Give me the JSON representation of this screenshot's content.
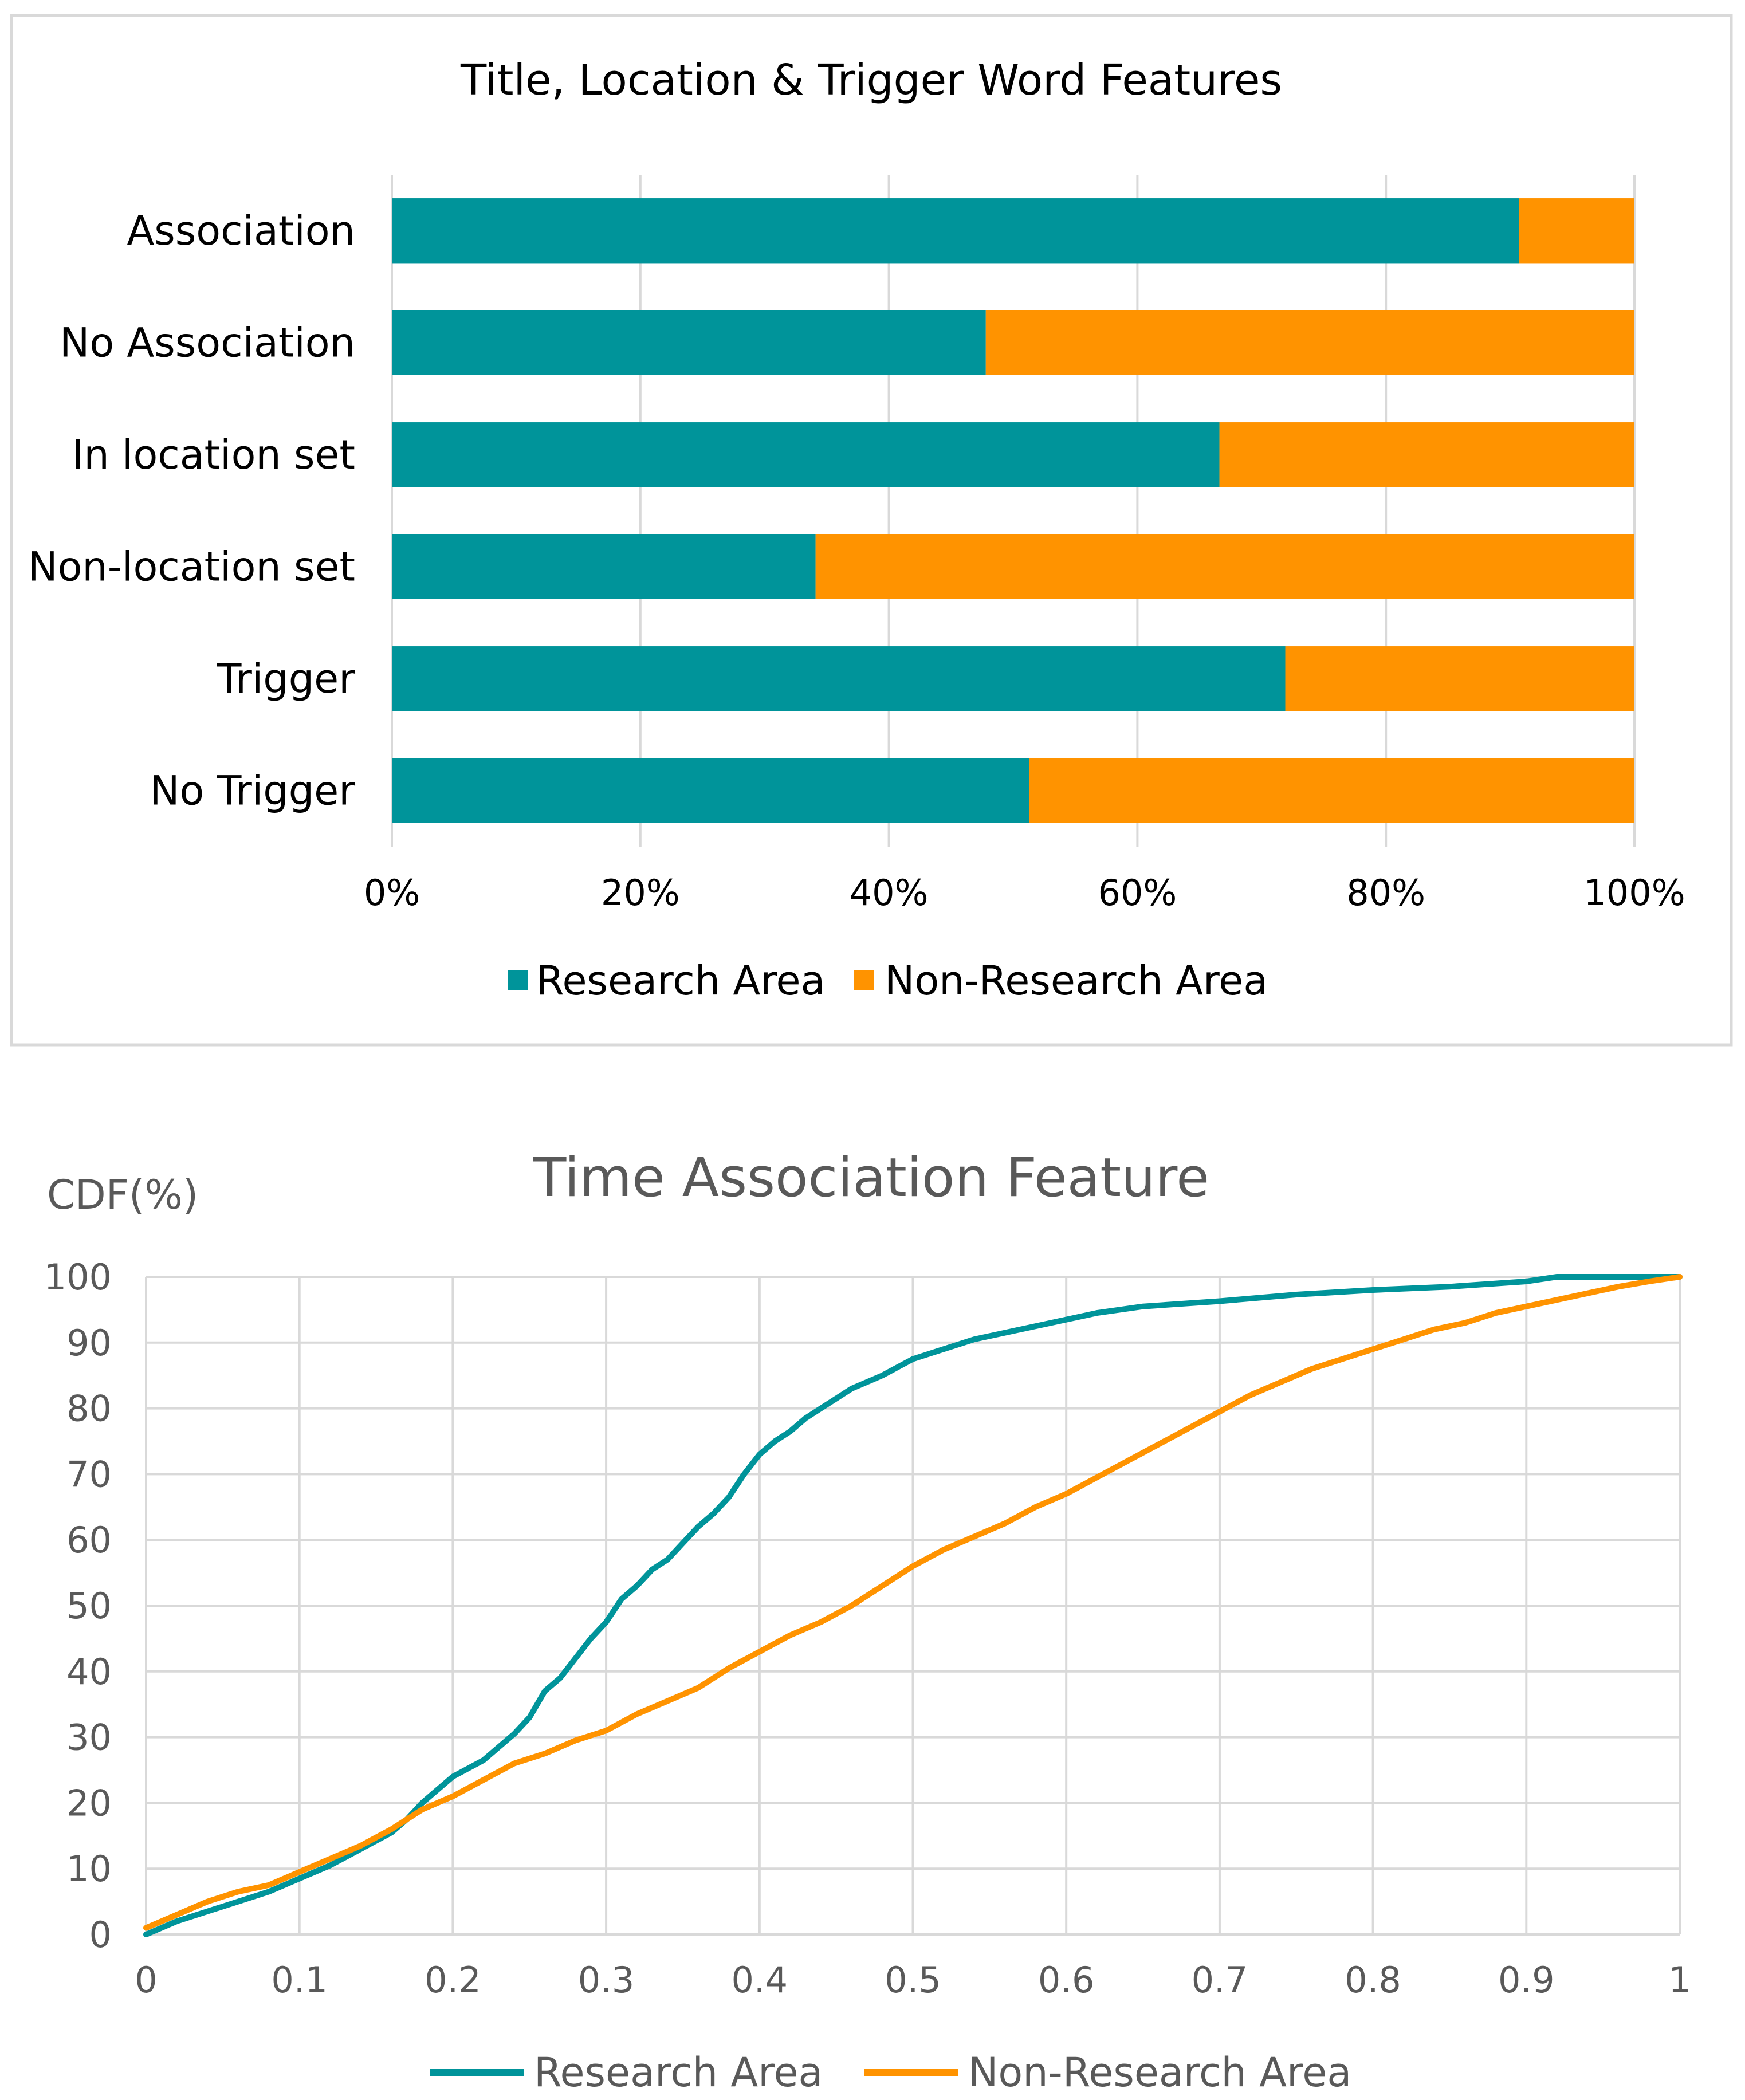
{
  "colors": {
    "research": "#00949A",
    "non_research": "#FF9300",
    "grid": "#D9D9D9",
    "frame": "#D9D9D9",
    "text_dark": "#000000",
    "text_gray": "#595959"
  },
  "chart_data": [
    {
      "type": "bar",
      "orientation": "horizontal",
      "stacked": "percent",
      "title": "Title, Location & Trigger Word Features",
      "categories": [
        "Association",
        "No Association",
        "In location set",
        "Non-location set",
        "Trigger",
        "No Trigger"
      ],
      "series": [
        {
          "name": "Research Area",
          "color": "#00949A",
          "values": [
            90.7,
            47.8,
            66.6,
            34.1,
            71.9,
            51.3
          ]
        },
        {
          "name": "Non-Research Area",
          "color": "#FF9300",
          "values": [
            9.3,
            52.2,
            33.4,
            65.9,
            28.1,
            48.7
          ]
        }
      ],
      "xlim": [
        0,
        100
      ],
      "x_ticks": [
        "0%",
        "20%",
        "40%",
        "60%",
        "80%",
        "100%"
      ],
      "legend_position": "bottom",
      "grid": true
    },
    {
      "type": "line",
      "title": "Time Association Feature",
      "ylabel": "CDF(%)",
      "xlim": [
        0,
        1
      ],
      "ylim": [
        0,
        100
      ],
      "x_ticks": [
        "0",
        "0.1",
        "0.2",
        "0.3",
        "0.4",
        "0.5",
        "0.6",
        "0.7",
        "0.8",
        "0.9",
        "1"
      ],
      "y_ticks": [
        "0",
        "10",
        "20",
        "30",
        "40",
        "50",
        "60",
        "70",
        "80",
        "90",
        "100"
      ],
      "legend_position": "bottom",
      "grid": true,
      "series": [
        {
          "name": "Research Area",
          "color": "#00949A",
          "x": [
            0,
            0.02,
            0.04,
            0.06,
            0.08,
            0.1,
            0.12,
            0.14,
            0.16,
            0.17,
            0.18,
            0.19,
            0.2,
            0.22,
            0.24,
            0.25,
            0.26,
            0.27,
            0.28,
            0.29,
            0.3,
            0.31,
            0.32,
            0.33,
            0.34,
            0.35,
            0.36,
            0.37,
            0.38,
            0.39,
            0.4,
            0.41,
            0.42,
            0.43,
            0.44,
            0.45,
            0.46,
            0.48,
            0.5,
            0.52,
            0.54,
            0.56,
            0.58,
            0.6,
            0.62,
            0.65,
            0.7,
            0.75,
            0.8,
            0.85,
            0.9,
            0.92,
            0.94,
            1.0
          ],
          "y": [
            0,
            2,
            3.5,
            5,
            6.5,
            8.5,
            10.5,
            13,
            15.5,
            17.5,
            20,
            22,
            24,
            26.5,
            30.5,
            33,
            37,
            39,
            42,
            45,
            47.5,
            51,
            53,
            55.5,
            57,
            59.5,
            62,
            64,
            66.5,
            70,
            73,
            75,
            76.5,
            78.5,
            80,
            81.5,
            83,
            85,
            87.5,
            89,
            90.5,
            91.5,
            92.5,
            93.5,
            94.5,
            95.5,
            96.3,
            97.3,
            98,
            98.5,
            99.3,
            100,
            100,
            100
          ]
        },
        {
          "name": "Non-Research Area",
          "color": "#FF9300",
          "x": [
            0,
            0.02,
            0.04,
            0.06,
            0.08,
            0.1,
            0.12,
            0.14,
            0.16,
            0.18,
            0.2,
            0.22,
            0.24,
            0.26,
            0.28,
            0.3,
            0.32,
            0.34,
            0.36,
            0.38,
            0.4,
            0.42,
            0.44,
            0.46,
            0.48,
            0.5,
            0.52,
            0.54,
            0.56,
            0.58,
            0.6,
            0.62,
            0.64,
            0.66,
            0.68,
            0.7,
            0.72,
            0.74,
            0.76,
            0.78,
            0.8,
            0.82,
            0.84,
            0.86,
            0.88,
            0.9,
            0.92,
            0.94,
            0.96,
            0.98,
            1.0
          ],
          "y": [
            1,
            3,
            5,
            6.5,
            7.5,
            9.5,
            11.5,
            13.5,
            16,
            19,
            21,
            23.5,
            26,
            27.5,
            29.5,
            31,
            33.5,
            35.5,
            37.5,
            40.5,
            43,
            45.5,
            47.5,
            50,
            53,
            56,
            58.5,
            60.5,
            62.5,
            65,
            67,
            69.5,
            72,
            74.5,
            77,
            79.5,
            82,
            84,
            86,
            87.5,
            89,
            90.5,
            92,
            93,
            94.5,
            95.5,
            96.5,
            97.5,
            98.5,
            99.3,
            100
          ]
        }
      ]
    }
  ]
}
